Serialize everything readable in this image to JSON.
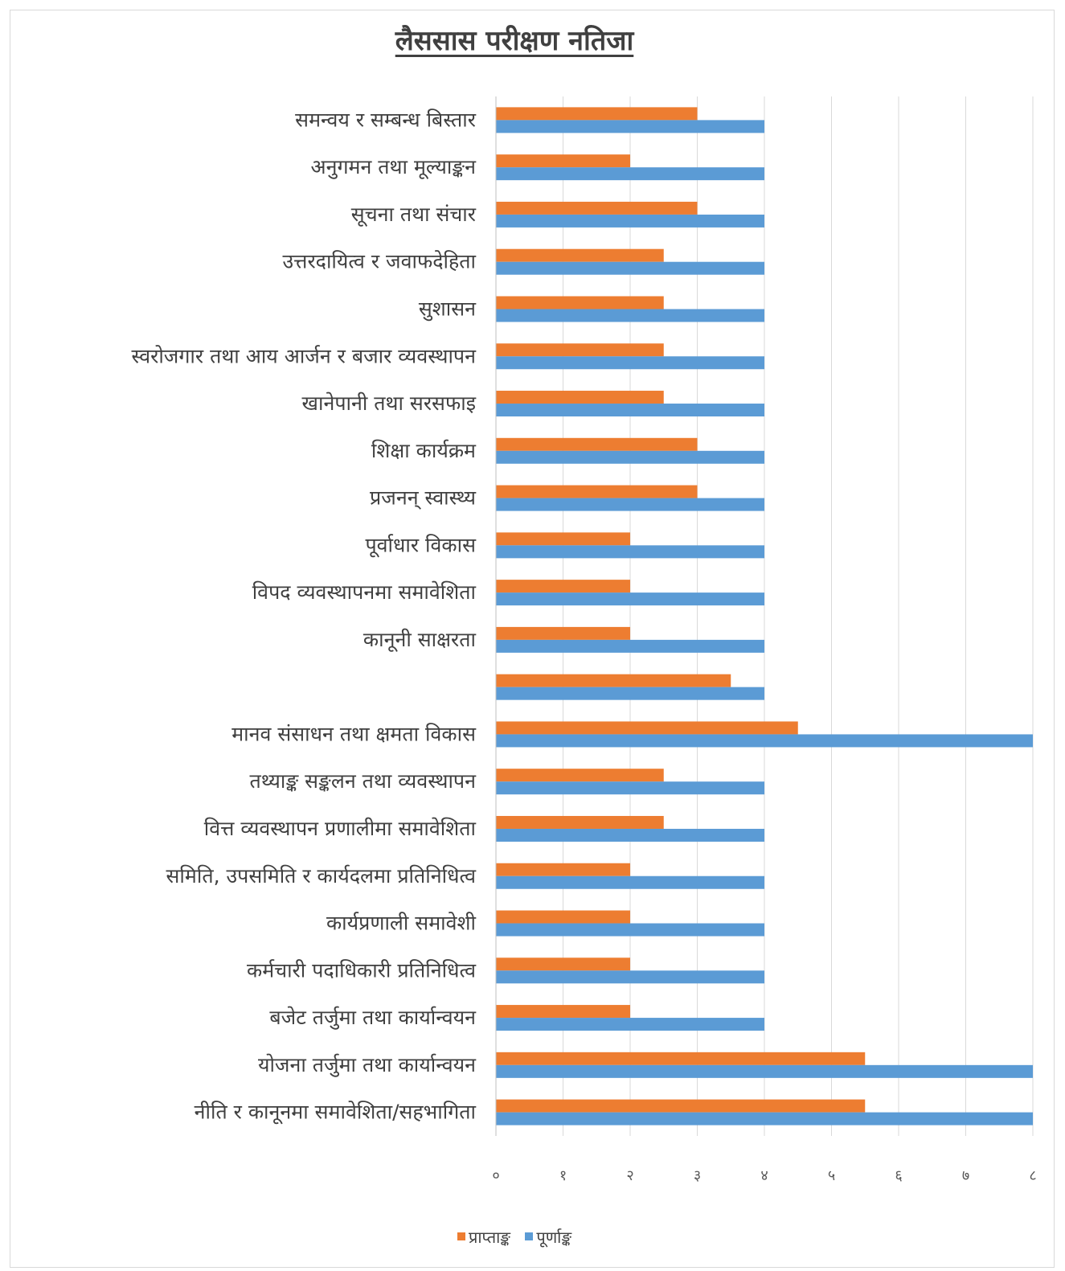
{
  "chart_data": {
    "type": "bar",
    "orientation": "horizontal",
    "title": "लैससास परीक्षण नतिजा",
    "categories": [
      "समन्वय र सम्बन्ध बिस्तार",
      "अनुगमन तथा मूल्याङ्कन",
      "सूचना तथा संचार",
      "उत्तरदायित्व र जवाफदेहिता",
      "सुशासन",
      "स्वरोजगार तथा आय आर्जन र बजार व्यवस्थापन",
      "खानेपानी तथा सरसफाइ",
      "शिक्षा कार्यक्रम",
      "प्रजनन् स्वास्थ्य",
      "पूर्वाधार विकास",
      "विपद व्यवस्थापनमा समावेशिता",
      "कानूनी साक्षरता",
      "",
      "मानव संसाधन तथा क्षमता विकास",
      "तथ्याङ्क सङ्कलन तथा व्यवस्थापन",
      "वित्त व्यवस्थापन प्रणालीमा समावेशिता",
      "समिति, उपसमिति र कार्यदलमा प्रतिनिधित्व",
      "कार्यप्रणाली समावेशी",
      "कर्मचारी पदाधिकारी प्रतिनिधित्व",
      "बजेट तर्जुमा तथा कार्यान्वयन",
      "योजना तर्जुमा तथा कार्यान्वयन",
      "नीति र कानूनमा समावेशिता/सहभागिता"
    ],
    "series": [
      {
        "name": "प्राप्ताङ्क",
        "color": "#ED7D31",
        "values": [
          3,
          2,
          3,
          2.5,
          2.5,
          2.5,
          2.5,
          3,
          3,
          2,
          2,
          2,
          3.5,
          4.5,
          2.5,
          2.5,
          2,
          2,
          2,
          2,
          5.5,
          5.5
        ]
      },
      {
        "name": "पूर्णाङ्क",
        "color": "#5B9BD5",
        "values": [
          4,
          4,
          4,
          4,
          4,
          4,
          4,
          4,
          4,
          4,
          4,
          4,
          4,
          8,
          4,
          4,
          4,
          4,
          4,
          4,
          8,
          8
        ]
      }
    ],
    "xlim": [
      0,
      8
    ],
    "ticks": [
      0,
      1,
      2,
      3,
      4,
      5,
      6,
      7,
      8
    ],
    "tick_labels": [
      "०",
      "१",
      "२",
      "३",
      "४",
      "५",
      "६",
      "७",
      "८"
    ],
    "grid": true,
    "gridline_color": "#d9d9d9",
    "legend_position": "bottom"
  }
}
